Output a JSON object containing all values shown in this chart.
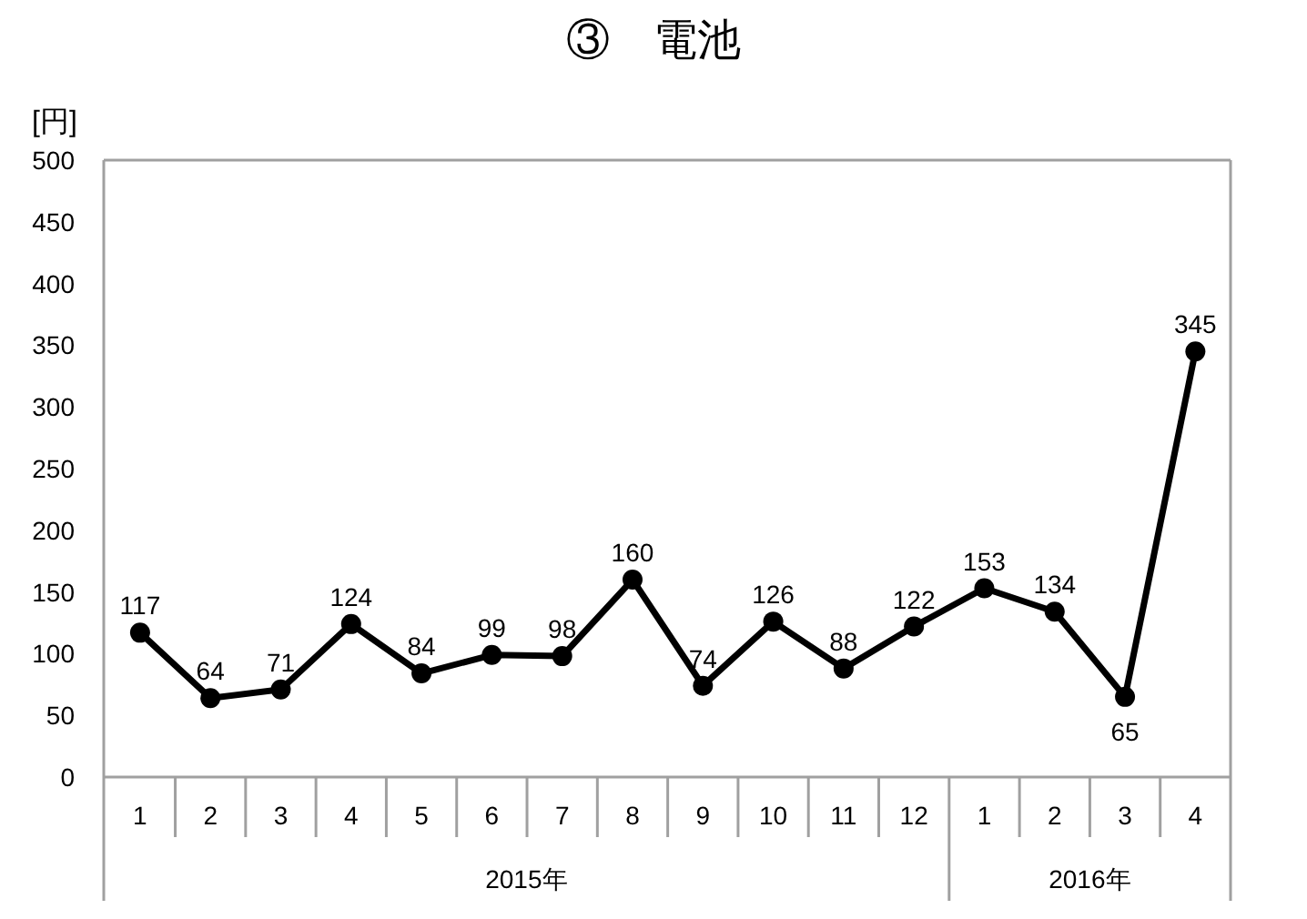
{
  "chart_data": {
    "type": "line",
    "title": "③　電池",
    "ylabel": "[円]",
    "x": [
      "2015-01",
      "2015-02",
      "2015-03",
      "2015-04",
      "2015-05",
      "2015-06",
      "2015-07",
      "2015-08",
      "2015-09",
      "2015-10",
      "2015-11",
      "2015-12",
      "2016-01",
      "2016-02",
      "2016-03",
      "2016-04"
    ],
    "xlim": [
      "2014-12-16",
      "2016-04-16"
    ],
    "xticks": [
      {
        "value": "2015-01",
        "label": "1"
      },
      {
        "value": "2015-02",
        "label": "2"
      },
      {
        "value": "2015-03",
        "label": "3"
      },
      {
        "value": "2015-04",
        "label": "4"
      },
      {
        "value": "2015-05",
        "label": "5"
      },
      {
        "value": "2015-06",
        "label": "6"
      },
      {
        "value": "2015-07",
        "label": "7"
      },
      {
        "value": "2015-08",
        "label": "8"
      },
      {
        "value": "2015-09",
        "label": "9"
      },
      {
        "value": "2015-10",
        "label": "10"
      },
      {
        "value": "2015-11",
        "label": "11"
      },
      {
        "value": "2015-12",
        "label": "12"
      },
      {
        "value": "2016-01",
        "label": "1"
      },
      {
        "value": "2016-02",
        "label": "2"
      },
      {
        "value": "2016-03",
        "label": "3"
      },
      {
        "value": "2016-04",
        "label": "4"
      }
    ],
    "annotations": [
      "2015年",
      "2016年"
    ],
    "series": [
      {
        "color": "#000000",
        "values": [
          117,
          64,
          71,
          124,
          84,
          99,
          98,
          160,
          74,
          126,
          88,
          122,
          153,
          134,
          65,
          345
        ]
      }
    ],
    "ylim": [
      0,
      500
    ],
    "yticks": [
      0,
      50,
      100,
      150,
      200,
      250,
      300,
      350,
      400,
      450,
      500
    ],
    "data_labels": true,
    "marker": "circle",
    "line_style": "solid"
  }
}
